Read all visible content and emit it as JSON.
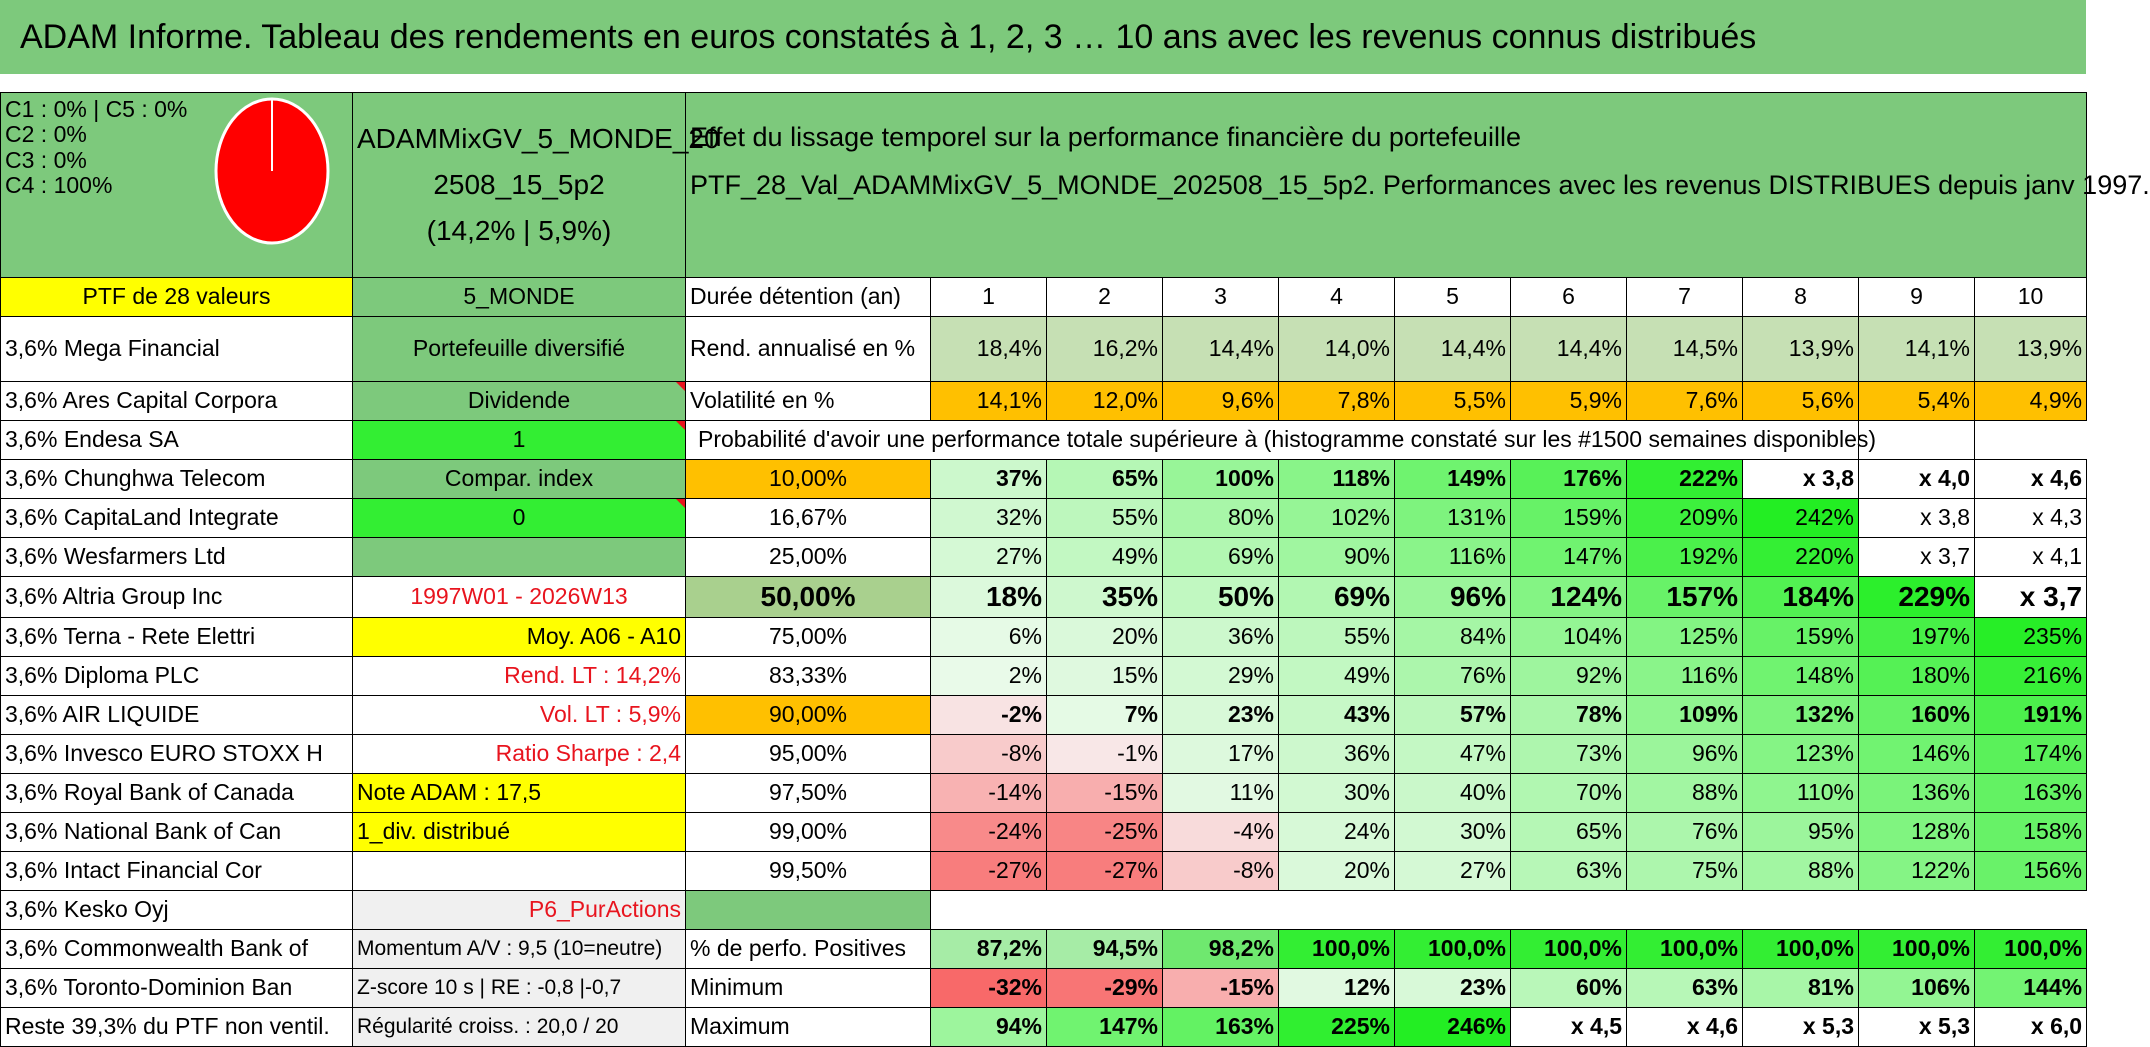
{
  "title": "ADAM Informe. Tableau des rendements en euros constatés à 1, 2, 3 … 10 ans avec les revenus connus distribués",
  "colors": {
    "header_green": "#7dc97c",
    "yellow": "#ffff00",
    "orange": "#ffc000",
    "light_green": "#a9d08e",
    "bright_green": "#33ee33",
    "pie_red": "#ff0000",
    "text_red": "#e8141e"
  },
  "classes": {
    "c1c5": "C1 : 0% | C5 : 0%",
    "c2": "C2 : 0%",
    "c3": "C3 : 0%",
    "c4": "C4 : 100%",
    "pie": [
      {
        "label": "C4",
        "value": 100
      }
    ]
  },
  "portfolio": {
    "name_line1": "ADAMMixGV_5_MONDE_20",
    "name_line2": "2508_15_5p2",
    "name_line3": "(14,2% | 5,9%)",
    "effect_line1": "Effet du lissage temporel sur la performance financière du portefeuille",
    "effect_line2": "PTF_28_Val_ADAMMixGV_5_MONDE_202508_15_5p2. Performances avec les revenus DISTRIBUES depuis janv 1997."
  },
  "col1": [
    "PTF de 28 valeurs",
    "3,6% Mega Financial",
    "3,6% Ares Capital Corpora",
    "3,6% Endesa SA",
    "3,6% Chunghwa Telecom",
    "3,6% CapitaLand Integrate",
    "3,6% Wesfarmers Ltd",
    "3,6% Altria Group Inc",
    "3,6% Terna - Rete Elettri",
    "3,6% Diploma PLC",
    "3,6% AIR LIQUIDE",
    "3,6% Invesco EURO STOXX H",
    "3,6% Royal Bank of Canada",
    "3,6% National Bank of Can",
    "3,6% Intact Financial Cor",
    "3,6% Kesko Oyj",
    "3,6% Commonwealth Bank of",
    "3,6% Toronto-Dominion Ban",
    "Reste 39,3% du PTF non ventil."
  ],
  "col2": [
    "5_MONDE",
    "Portefeuille diversifié",
    "Dividende",
    "1",
    "Compar. index",
    "0",
    "",
    "1997W01 - 2026W13",
    "Moy. A06 - A10",
    "Rend. LT : 14,2%",
    "Vol. LT : 5,9%",
    "Ratio Sharpe : 2,4",
    "Note ADAM : 17,5",
    "1_div. distribué",
    "",
    "P6_PurActions",
    "Momentum A/V : 9,5 (10=neutre)",
    "Z-score 10 s | RE : -0,8 |-0,7",
    "Régularité croiss. : 20,0 / 20"
  ],
  "header_row": {
    "label": "Durée détention (an)",
    "years": [
      "1",
      "2",
      "3",
      "4",
      "5",
      "6",
      "7",
      "8",
      "9",
      "10"
    ]
  },
  "rend": {
    "label": "Rend. annualisé en %",
    "values": [
      "18,4%",
      "16,2%",
      "14,4%",
      "14,0%",
      "14,4%",
      "14,4%",
      "14,5%",
      "13,9%",
      "14,1%",
      "13,9%"
    ]
  },
  "vol": {
    "label": "Volatilité en %",
    "values": [
      "14,1%",
      "12,0%",
      "9,6%",
      "7,8%",
      "5,5%",
      "5,9%",
      "7,6%",
      "5,6%",
      "5,4%",
      "4,9%"
    ]
  },
  "proba_title": "Probabilité d'avoir une performance totale supérieure à (histogramme constaté sur les #1500 semaines disponibles)",
  "proba_rows": [
    {
      "p": "10,00%",
      "v": [
        "37%",
        "65%",
        "100%",
        "118%",
        "149%",
        "176%",
        "222%",
        "x 3,8",
        "x 4,0",
        "x 4,6"
      ]
    },
    {
      "p": "16,67%",
      "v": [
        "32%",
        "55%",
        "80%",
        "102%",
        "131%",
        "159%",
        "209%",
        "242%",
        "x 3,8",
        "x 4,3"
      ]
    },
    {
      "p": "25,00%",
      "v": [
        "27%",
        "49%",
        "69%",
        "90%",
        "116%",
        "147%",
        "192%",
        "220%",
        "x 3,7",
        "x 4,1"
      ]
    },
    {
      "p": "50,00%",
      "v": [
        "18%",
        "35%",
        "50%",
        "69%",
        "96%",
        "124%",
        "157%",
        "184%",
        "229%",
        "x 3,7"
      ]
    },
    {
      "p": "75,00%",
      "v": [
        "6%",
        "20%",
        "36%",
        "55%",
        "84%",
        "104%",
        "125%",
        "159%",
        "197%",
        "235%"
      ]
    },
    {
      "p": "83,33%",
      "v": [
        "2%",
        "15%",
        "29%",
        "49%",
        "76%",
        "92%",
        "116%",
        "148%",
        "180%",
        "216%"
      ]
    },
    {
      "p": "90,00%",
      "v": [
        "-2%",
        "7%",
        "23%",
        "43%",
        "57%",
        "78%",
        "109%",
        "132%",
        "160%",
        "191%"
      ]
    },
    {
      "p": "95,00%",
      "v": [
        "-8%",
        "-1%",
        "17%",
        "36%",
        "47%",
        "73%",
        "96%",
        "123%",
        "146%",
        "174%"
      ]
    },
    {
      "p": "97,50%",
      "v": [
        "-14%",
        "-15%",
        "11%",
        "30%",
        "40%",
        "70%",
        "88%",
        "110%",
        "136%",
        "163%"
      ]
    },
    {
      "p": "99,00%",
      "v": [
        "-24%",
        "-25%",
        "-4%",
        "24%",
        "30%",
        "65%",
        "76%",
        "95%",
        "128%",
        "158%"
      ]
    },
    {
      "p": "99,50%",
      "v": [
        "-27%",
        "-27%",
        "-8%",
        "20%",
        "27%",
        "63%",
        "75%",
        "88%",
        "122%",
        "156%"
      ]
    }
  ],
  "pos": {
    "label": "% de perfo. Positives",
    "values": [
      "87,2%",
      "94,5%",
      "98,2%",
      "100,0%",
      "100,0%",
      "100,0%",
      "100,0%",
      "100,0%",
      "100,0%",
      "100,0%"
    ]
  },
  "min": {
    "label": "Minimum",
    "values": [
      "-32%",
      "-29%",
      "-15%",
      "12%",
      "23%",
      "60%",
      "63%",
      "81%",
      "106%",
      "144%"
    ]
  },
  "max": {
    "label": "Maximum",
    "values": [
      "94%",
      "147%",
      "163%",
      "225%",
      "246%",
      "x 4,5",
      "x 4,6",
      "x 5,3",
      "x 5,3",
      "x 6,0"
    ]
  }
}
